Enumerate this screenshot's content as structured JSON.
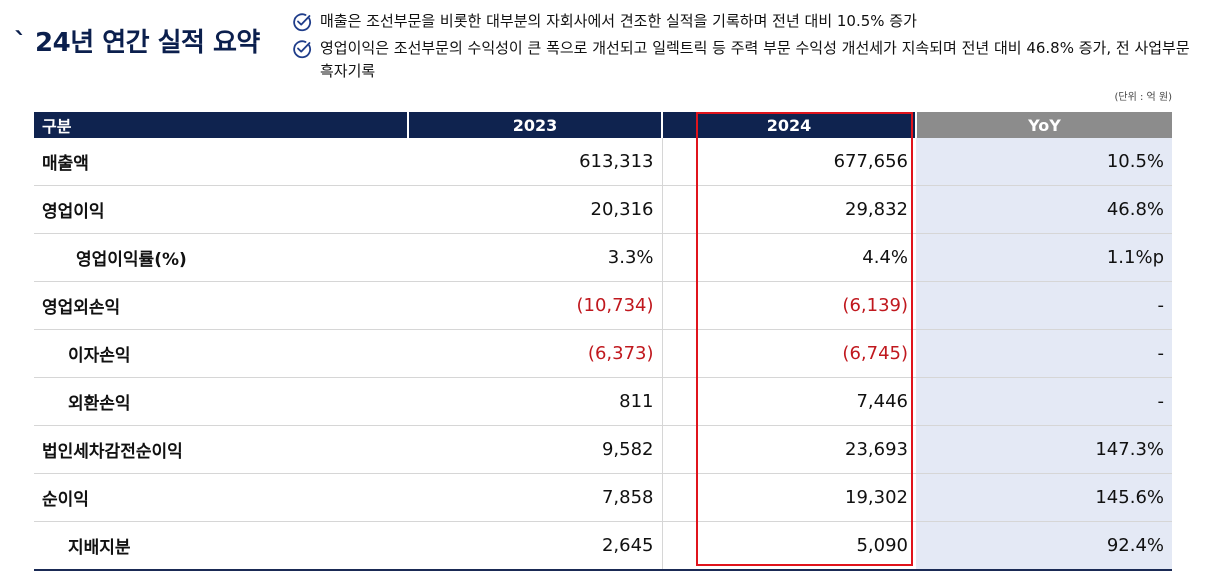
{
  "title": "` 24년 연간 실적 요약",
  "bullets": [
    "매출은 조선부문을 비롯한 대부분의 자회사에서 견조한 실적을 기록하며 전년 대비 10.5% 증가",
    "영업이익은 조선부문의 수익성이 큰 폭으로 개선되고 일렉트릭 등 주력 부문 수익성 개선세가 지속되며 전년 대비 46.8% 증가, 전 사업부문 흑자기록"
  ],
  "unit_note": "(단위 : 억 원)",
  "table": {
    "headers": [
      "구분",
      "2023",
      "2024",
      "YoY"
    ],
    "rows": [
      {
        "label": "매출액",
        "y2023": "613,313",
        "y2024": "677,656",
        "yoy": "10.5%"
      },
      {
        "label": "영업이익",
        "y2023": "20,316",
        "y2024": "29,832",
        "yoy": "46.8%"
      },
      {
        "label": "영업이익률(%)",
        "y2023": "3.3%",
        "y2024": "4.4%",
        "yoy": "1.1%p"
      },
      {
        "label": "영업외손익",
        "y2023": "(10,734)",
        "y2024": "(6,139)",
        "yoy": "-"
      },
      {
        "label": "이자손익",
        "y2023": "(6,373)",
        "y2024": "(6,745)",
        "yoy": "-"
      },
      {
        "label": "외환손익",
        "y2023": "811",
        "y2024": "7,446",
        "yoy": "-"
      },
      {
        "label": "법인세차감전순이익",
        "y2023": "9,582",
        "y2024": "23,693",
        "yoy": "147.3%"
      },
      {
        "label": "순이익",
        "y2023": "7,858",
        "y2024": "19,302",
        "yoy": "145.6%"
      },
      {
        "label": "지배지분",
        "y2023": "2,645",
        "y2024": "5,090",
        "yoy": "92.4%"
      }
    ]
  },
  "colors": {
    "header_navy": "#0f234f",
    "yoy_header_gray": "#8c8c8c",
    "yoy_column_bg": "#e4e9f5",
    "negative_red": "#c0181e",
    "highlight_box": "#e0141c"
  },
  "icons": {
    "bullet": "check-circle-icon"
  }
}
